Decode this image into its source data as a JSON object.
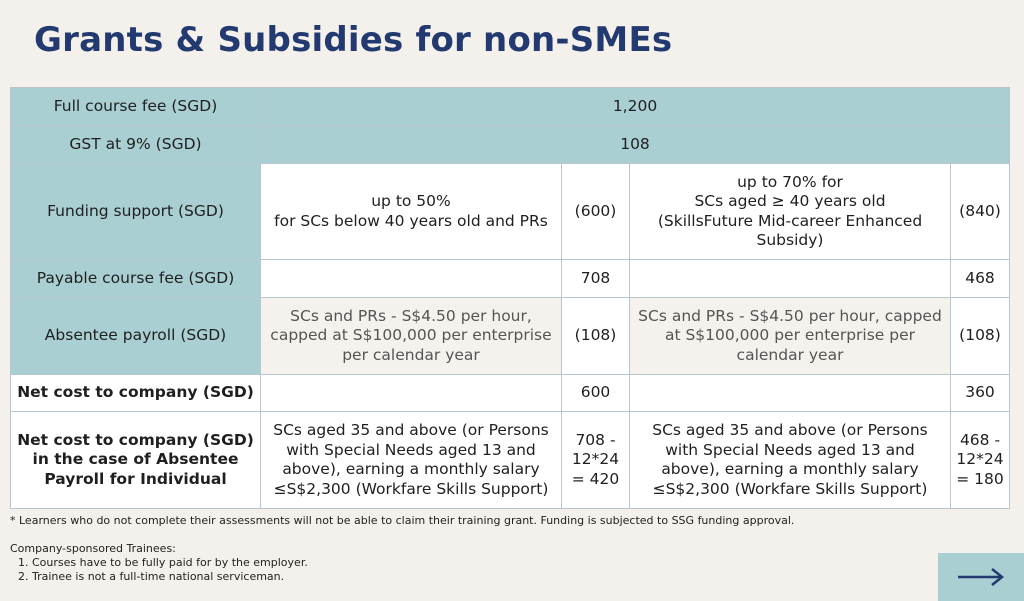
{
  "title": "Grants & Subsidies for non-SMEs",
  "table": {
    "full_fee": {
      "label": "Full course fee (SGD)",
      "value": "1,200"
    },
    "gst": {
      "label": "GST at 9% (SGD)",
      "value": "108"
    },
    "funding": {
      "label": "Funding support (SGD)",
      "opt1_line1": "up to 50%",
      "opt1_line2": "for SCs below 40 years old and PRs",
      "opt1_amt": "(600)",
      "opt2_line1": "up to 70% for",
      "opt2_line2": "SCs aged ≥ 40 years old",
      "opt2_line3": "(SkillsFuture Mid-career Enhanced Subsidy)",
      "opt2_amt": "(840)"
    },
    "payable": {
      "label": "Payable course fee (SGD)",
      "amt1": "708",
      "amt2": "468"
    },
    "absentee": {
      "label": "Absentee payroll (SGD)",
      "desc1": "SCs and PRs - S$4.50 per hour, capped at S$100,000 per enterprise per calendar year",
      "amt1": "(108)",
      "desc2": "SCs and PRs - S$4.50 per hour, capped at S$100,000 per enterprise per calendar year",
      "amt2": "(108)"
    },
    "net_cost": {
      "label": "Net cost to company (SGD)",
      "amt1": "600",
      "amt2": "360"
    },
    "net_individual": {
      "label": "Net cost to company (SGD) in the case of Absentee Payroll for Individual",
      "desc1": "SCs aged 35 and above (or Persons with Special Needs aged 13 and above), earning a monthly salary ≤S$2,300 (Workfare Skills Support)",
      "amt1": "708 - 12*24 = 420",
      "desc2": "SCs aged 35 and above (or Persons with Special Needs aged 13 and above), earning a monthly salary ≤S$2,300 (Workfare Skills Support)",
      "amt2": "468 - 12*24 = 180"
    }
  },
  "footnote": "* Learners who do not complete their assessments will not be able to claim their training grant. Funding is subjected to SSG funding approval.",
  "company": {
    "heading": "Company-sponsored Trainees:",
    "items": [
      "Courses have to be fully paid for by the employer.",
      "Trainee is not a full-time national serviceman."
    ]
  },
  "next_icon": "arrow-right-icon",
  "colors": {
    "title": "#233a70",
    "accent": "#a9cfd3",
    "background": "#f4f1ec"
  }
}
